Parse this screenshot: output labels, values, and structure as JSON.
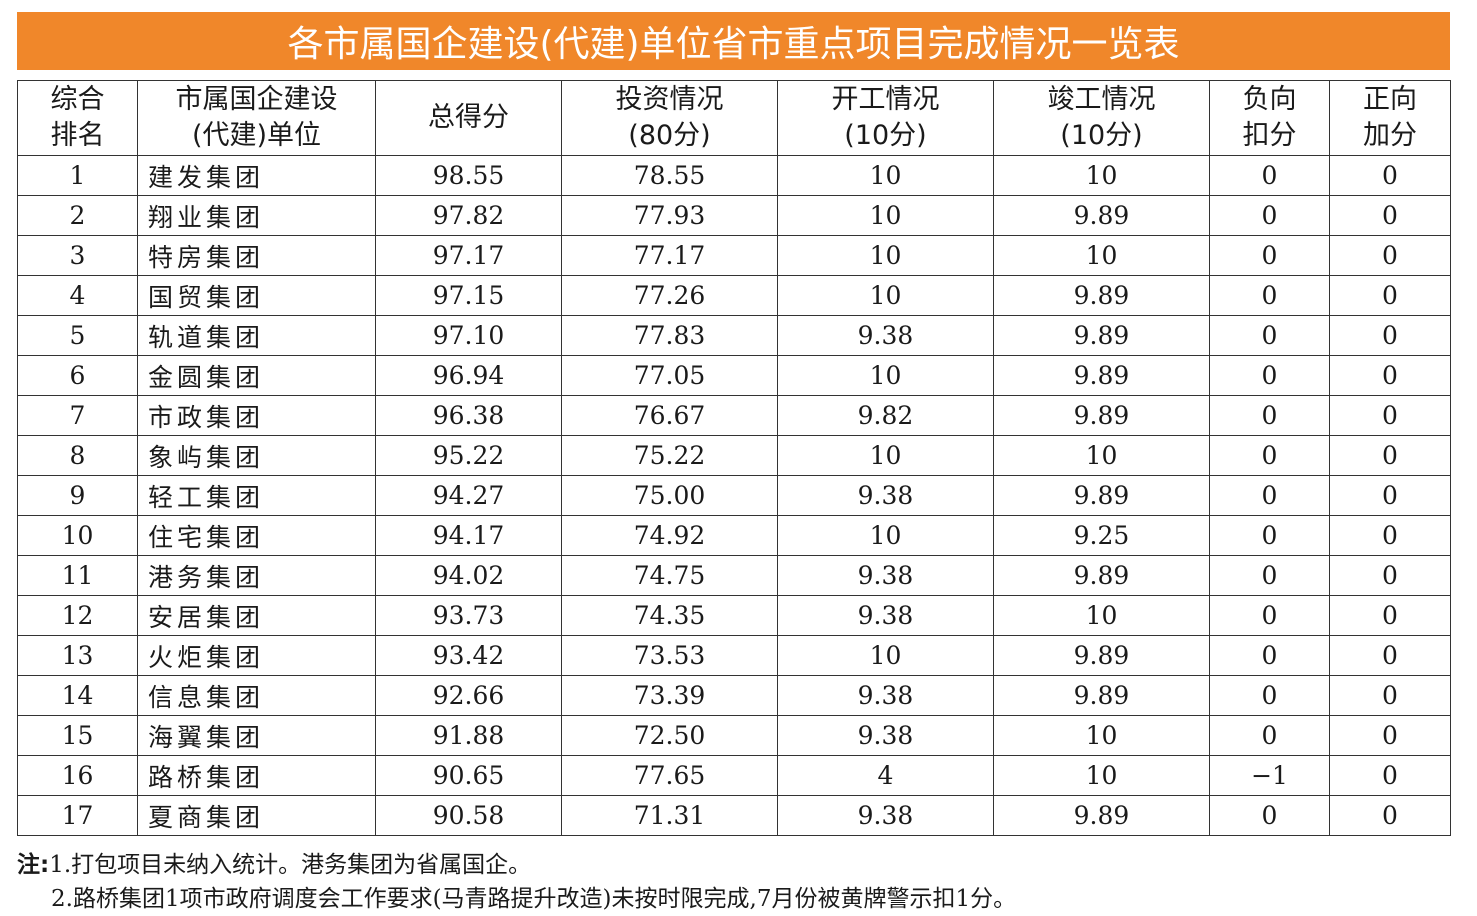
{
  "title": "各市属国企建设(代建)单位省市重点项目完成情况一览表",
  "headers": [
    [
      "综合",
      "排名"
    ],
    [
      "市属国企建设",
      "(代建)单位"
    ],
    [
      "总得分"
    ],
    [
      "投资情况",
      "(80分)"
    ],
    [
      "开工情况",
      "(10分)"
    ],
    [
      "竣工情况",
      "(10分)"
    ],
    [
      "负向",
      "扣分"
    ],
    [
      "正向",
      "加分"
    ]
  ],
  "rows": [
    [
      "1",
      "建发集团",
      "98.55",
      "78.55",
      "10",
      "10",
      "0",
      "0"
    ],
    [
      "2",
      "翔业集团",
      "97.82",
      "77.93",
      "10",
      "9.89",
      "0",
      "0"
    ],
    [
      "3",
      "特房集团",
      "97.17",
      "77.17",
      "10",
      "10",
      "0",
      "0"
    ],
    [
      "4",
      "国贸集团",
      "97.15",
      "77.26",
      "10",
      "9.89",
      "0",
      "0"
    ],
    [
      "5",
      "轨道集团",
      "97.10",
      "77.83",
      "9.38",
      "9.89",
      "0",
      "0"
    ],
    [
      "6",
      "金圆集团",
      "96.94",
      "77.05",
      "10",
      "9.89",
      "0",
      "0"
    ],
    [
      "7",
      "市政集团",
      "96.38",
      "76.67",
      "9.82",
      "9.89",
      "0",
      "0"
    ],
    [
      "8",
      "象屿集团",
      "95.22",
      "75.22",
      "10",
      "10",
      "0",
      "0"
    ],
    [
      "9",
      "轻工集团",
      "94.27",
      "75.00",
      "9.38",
      "9.89",
      "0",
      "0"
    ],
    [
      "10",
      "住宅集团",
      "94.17",
      "74.92",
      "10",
      "9.25",
      "0",
      "0"
    ],
    [
      "11",
      "港务集团",
      "94.02",
      "74.75",
      "9.38",
      "9.89",
      "0",
      "0"
    ],
    [
      "12",
      "安居集团",
      "93.73",
      "74.35",
      "9.38",
      "10",
      "0",
      "0"
    ],
    [
      "13",
      "火炬集团",
      "93.42",
      "73.53",
      "10",
      "9.89",
      "0",
      "0"
    ],
    [
      "14",
      "信息集团",
      "92.66",
      "73.39",
      "9.38",
      "9.89",
      "0",
      "0"
    ],
    [
      "15",
      "海翼集团",
      "91.88",
      "72.50",
      "9.38",
      "10",
      "0",
      "0"
    ],
    [
      "16",
      "路桥集团",
      "90.65",
      "77.65",
      "4",
      "10",
      "−1",
      "0"
    ],
    [
      "17",
      "夏商集团",
      "90.58",
      "71.31",
      "9.38",
      "9.89",
      "0",
      "0"
    ]
  ],
  "notes": {
    "label": "注:",
    "line1": "1.打包项目未纳入统计。港务集团为省属国企。",
    "line2": "2.路桥集团1项市政府调度会工作要求(马青路提升改造)未按时限完成,7月份被黄牌警示扣1分。"
  },
  "colors": {
    "title_bg": "#f0872a",
    "title_text": "#ffffff",
    "border": "#333333"
  }
}
